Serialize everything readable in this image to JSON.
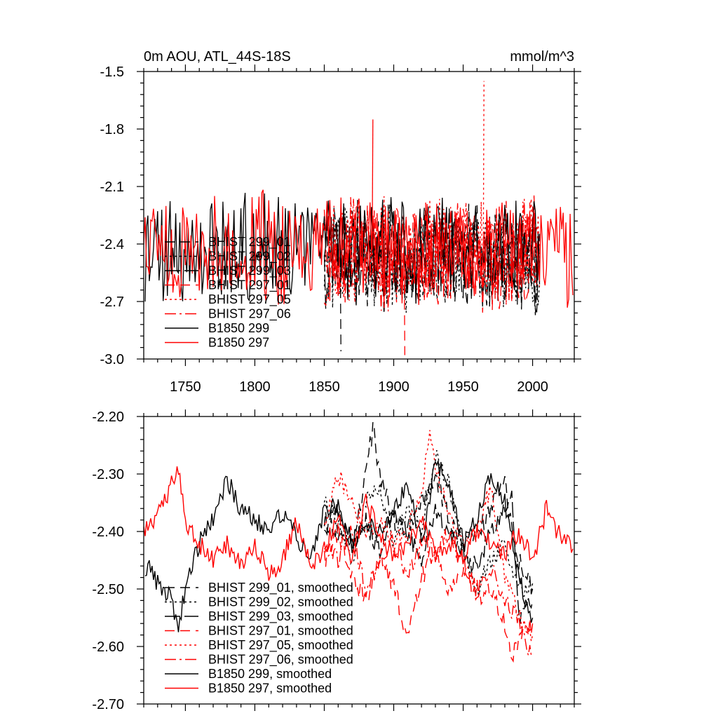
{
  "page": {
    "title_left": "0m AOU, ATL_44S-18S",
    "title_right": "mmol/m^3"
  },
  "colors": {
    "black": "#000000",
    "red": "#ff0000",
    "frame": "#000000",
    "background": "#ffffff"
  },
  "chart_data": [
    {
      "type": "line",
      "title": "0m AOU, ATL_44S-18S",
      "units": "mmol/m^3",
      "xlabel": "",
      "ylabel": "",
      "xlim": [
        1720,
        2030
      ],
      "ylim": [
        -3.0,
        -1.5
      ],
      "xticks": [
        1750,
        1800,
        1850,
        1900,
        1950,
        2000
      ],
      "xtick_labels": [
        "1750",
        "1800",
        "1850",
        "1900",
        "1950",
        "2000"
      ],
      "yticks": [
        -1.5,
        -1.8,
        -2.1,
        -2.4,
        -2.7,
        -3.0
      ],
      "ytick_labels": [
        "-1.5",
        "-1.8",
        "-2.1",
        "-2.4",
        "-2.7",
        "-3.0"
      ],
      "grid": false,
      "legend_position": "bottom-left",
      "series": [
        {
          "name": "BHIST 299_01",
          "label": "BHIST 299_01",
          "color": "#000000",
          "dash": "14,8",
          "x_start": 1850,
          "x_end": 2005,
          "base": -2.47,
          "amplitude": 0.32,
          "seed": 11
        },
        {
          "name": "BHIST 299_02",
          "label": "BHIST 299_02",
          "color": "#000000",
          "dash": "3,4",
          "x_start": 1850,
          "x_end": 2005,
          "base": -2.47,
          "amplitude": 0.32,
          "seed": 23
        },
        {
          "name": "BHIST 299_03",
          "label": "BHIST 299_03",
          "color": "#000000",
          "dash": "22,6",
          "x_start": 1850,
          "x_end": 2005,
          "base": -2.47,
          "amplitude": 0.32,
          "seed": 37
        },
        {
          "name": "BHIST 297_01",
          "label": "BHIST 297_01",
          "color": "#ff0000",
          "dash": "14,8",
          "x_start": 1850,
          "x_end": 2005,
          "base": -2.45,
          "amplitude": 0.32,
          "seed": 41
        },
        {
          "name": "BHIST 297_05",
          "label": "BHIST 297_05",
          "color": "#ff0000",
          "dash": "3,4",
          "x_start": 1850,
          "x_end": 2005,
          "base": -2.45,
          "amplitude": 0.32,
          "seed": 53
        },
        {
          "name": "BHIST 297_06",
          "label": "BHIST 297_06",
          "color": "#ff0000",
          "dash": "16,5,3,5",
          "x_start": 1850,
          "x_end": 2005,
          "base": -2.45,
          "amplitude": 0.32,
          "seed": 67
        },
        {
          "name": "B1850 299",
          "label": "B1850 299",
          "color": "#000000",
          "dash": "",
          "x_start": 1721,
          "x_end": 2005,
          "base": -2.42,
          "amplitude": 0.3,
          "seed": 79
        },
        {
          "name": "B1850 297",
          "label": "B1850 297",
          "color": "#ff0000",
          "dash": "",
          "x_start": 1720,
          "x_end": 2029,
          "base": -2.43,
          "amplitude": 0.32,
          "seed": 97
        }
      ],
      "highlights": [
        {
          "series": "B1850 297",
          "x": 1885,
          "y": -1.75
        },
        {
          "series": "BHIST 297_05",
          "x": 1965,
          "y": -1.55
        },
        {
          "series": "BHIST 297_01",
          "x": 1908,
          "y": -2.98
        },
        {
          "series": "BHIST 299_01",
          "x": 1862,
          "y": -2.96
        }
      ]
    },
    {
      "type": "line",
      "title": "",
      "xlabel": "",
      "ylabel": "",
      "xlim": [
        1720,
        2030
      ],
      "ylim": [
        -2.7,
        -2.2
      ],
      "xticks": [
        1750,
        1800,
        1850,
        1900,
        1950,
        2000
      ],
      "xtick_labels": [],
      "yticks": [
        -2.2,
        -2.3,
        -2.4,
        -2.5,
        -2.6,
        -2.7
      ],
      "ytick_labels": [
        "-2.20",
        "-2.30",
        "-2.40",
        "-2.50",
        "-2.60",
        "-2.70"
      ],
      "grid": false,
      "legend_position": "bottom-left",
      "series": [
        {
          "name": "BHIST 299_01, smoothed",
          "label": "BHIST 299_01, smoothed",
          "color": "#000000",
          "dash": "14,8",
          "x": [
            1850,
            1860,
            1870,
            1880,
            1885,
            1890,
            1900,
            1910,
            1920,
            1930,
            1940,
            1950,
            1960,
            1970,
            1980,
            1990,
            2000
          ],
          "y": [
            -2.38,
            -2.4,
            -2.42,
            -2.3,
            -2.22,
            -2.3,
            -2.38,
            -2.4,
            -2.35,
            -2.3,
            -2.38,
            -2.42,
            -2.4,
            -2.36,
            -2.32,
            -2.45,
            -2.5
          ]
        },
        {
          "name": "BHIST 299_02, smoothed",
          "label": "BHIST 299_02, smoothed",
          "color": "#000000",
          "dash": "3,4",
          "x": [
            1850,
            1860,
            1870,
            1880,
            1890,
            1900,
            1910,
            1920,
            1930,
            1940,
            1950,
            1960,
            1970,
            1980,
            1990,
            2000
          ],
          "y": [
            -2.35,
            -2.38,
            -2.45,
            -2.35,
            -2.32,
            -2.42,
            -2.36,
            -2.4,
            -2.27,
            -2.32,
            -2.43,
            -2.5,
            -2.45,
            -2.42,
            -2.5,
            -2.49
          ]
        },
        {
          "name": "BHIST 299_03, smoothed",
          "label": "BHIST 299_03, smoothed",
          "color": "#000000",
          "dash": "22,6",
          "x": [
            1850,
            1860,
            1870,
            1880,
            1890,
            1900,
            1910,
            1920,
            1930,
            1940,
            1950,
            1960,
            1970,
            1980,
            1985,
            1990,
            2000
          ],
          "y": [
            -2.4,
            -2.36,
            -2.42,
            -2.38,
            -2.44,
            -2.36,
            -2.4,
            -2.45,
            -2.36,
            -2.4,
            -2.44,
            -2.46,
            -2.4,
            -2.36,
            -2.34,
            -2.55,
            -2.52
          ]
        },
        {
          "name": "BHIST 297_01, smoothed",
          "label": "BHIST 297_01, smoothed",
          "color": "#ff0000",
          "dash": "14,8",
          "x": [
            1850,
            1860,
            1870,
            1880,
            1890,
            1900,
            1910,
            1920,
            1930,
            1940,
            1950,
            1960,
            1970,
            1980,
            1985,
            1990,
            2000
          ],
          "y": [
            -2.45,
            -2.4,
            -2.48,
            -2.52,
            -2.44,
            -2.5,
            -2.58,
            -2.48,
            -2.44,
            -2.5,
            -2.46,
            -2.52,
            -2.5,
            -2.56,
            -2.63,
            -2.58,
            -2.56
          ]
        },
        {
          "name": "BHIST 297_05, smoothed",
          "label": "BHIST 297_05, smoothed",
          "color": "#ff0000",
          "dash": "3,4",
          "x": [
            1850,
            1860,
            1870,
            1880,
            1890,
            1900,
            1910,
            1920,
            1925,
            1930,
            1940,
            1950,
            1960,
            1970,
            1980,
            1990,
            2000
          ],
          "y": [
            -2.4,
            -2.3,
            -2.35,
            -2.4,
            -2.38,
            -2.42,
            -2.4,
            -2.33,
            -2.23,
            -2.28,
            -2.38,
            -2.42,
            -2.4,
            -2.32,
            -2.48,
            -2.55,
            -2.58
          ]
        },
        {
          "name": "BHIST 297_06, smoothed",
          "label": "BHIST 297_06, smoothed",
          "color": "#ff0000",
          "dash": "16,5,3,5",
          "x": [
            1850,
            1860,
            1870,
            1880,
            1890,
            1900,
            1910,
            1920,
            1930,
            1940,
            1950,
            1960,
            1970,
            1980,
            1990,
            2000
          ],
          "y": [
            -2.42,
            -2.45,
            -2.4,
            -2.5,
            -2.45,
            -2.42,
            -2.48,
            -2.42,
            -2.44,
            -2.4,
            -2.46,
            -2.5,
            -2.46,
            -2.52,
            -2.56,
            -2.62
          ]
        },
        {
          "name": "B1850 299, smoothed",
          "label": "B1850 299, smoothed",
          "color": "#000000",
          "dash": "",
          "x": [
            1721,
            1725,
            1730,
            1735,
            1740,
            1745,
            1750,
            1760,
            1770,
            1780,
            1790,
            1800,
            1810,
            1820,
            1830,
            1840,
            1850,
            1860,
            1870,
            1880,
            1890,
            1900,
            1910,
            1920,
            1930,
            1940,
            1950,
            1960,
            1970,
            1980,
            1990,
            2000
          ],
          "y": [
            -2.47,
            -2.46,
            -2.49,
            -2.5,
            -2.52,
            -2.57,
            -2.5,
            -2.42,
            -2.38,
            -2.31,
            -2.36,
            -2.38,
            -2.4,
            -2.37,
            -2.41,
            -2.45,
            -2.36,
            -2.36,
            -2.42,
            -2.38,
            -2.4,
            -2.36,
            -2.32,
            -2.42,
            -2.28,
            -2.32,
            -2.42,
            -2.38,
            -2.3,
            -2.35,
            -2.48,
            -2.55
          ]
        },
        {
          "name": "B1850 297, smoothed",
          "label": "B1850 297, smoothed",
          "color": "#ff0000",
          "dash": "",
          "x": [
            1720,
            1730,
            1740,
            1745,
            1750,
            1760,
            1770,
            1780,
            1790,
            1800,
            1810,
            1820,
            1830,
            1840,
            1850,
            1860,
            1870,
            1880,
            1890,
            1900,
            1910,
            1920,
            1930,
            1940,
            1950,
            1960,
            1970,
            1980,
            1990,
            2000,
            2010,
            2020,
            2029
          ],
          "y": [
            -2.4,
            -2.37,
            -2.32,
            -2.3,
            -2.38,
            -2.42,
            -2.45,
            -2.42,
            -2.46,
            -2.42,
            -2.48,
            -2.45,
            -2.38,
            -2.46,
            -2.43,
            -2.38,
            -2.45,
            -2.35,
            -2.4,
            -2.45,
            -2.42,
            -2.38,
            -2.44,
            -2.42,
            -2.45,
            -2.4,
            -2.42,
            -2.44,
            -2.4,
            -2.45,
            -2.36,
            -2.41,
            -2.43
          ]
        }
      ]
    }
  ]
}
